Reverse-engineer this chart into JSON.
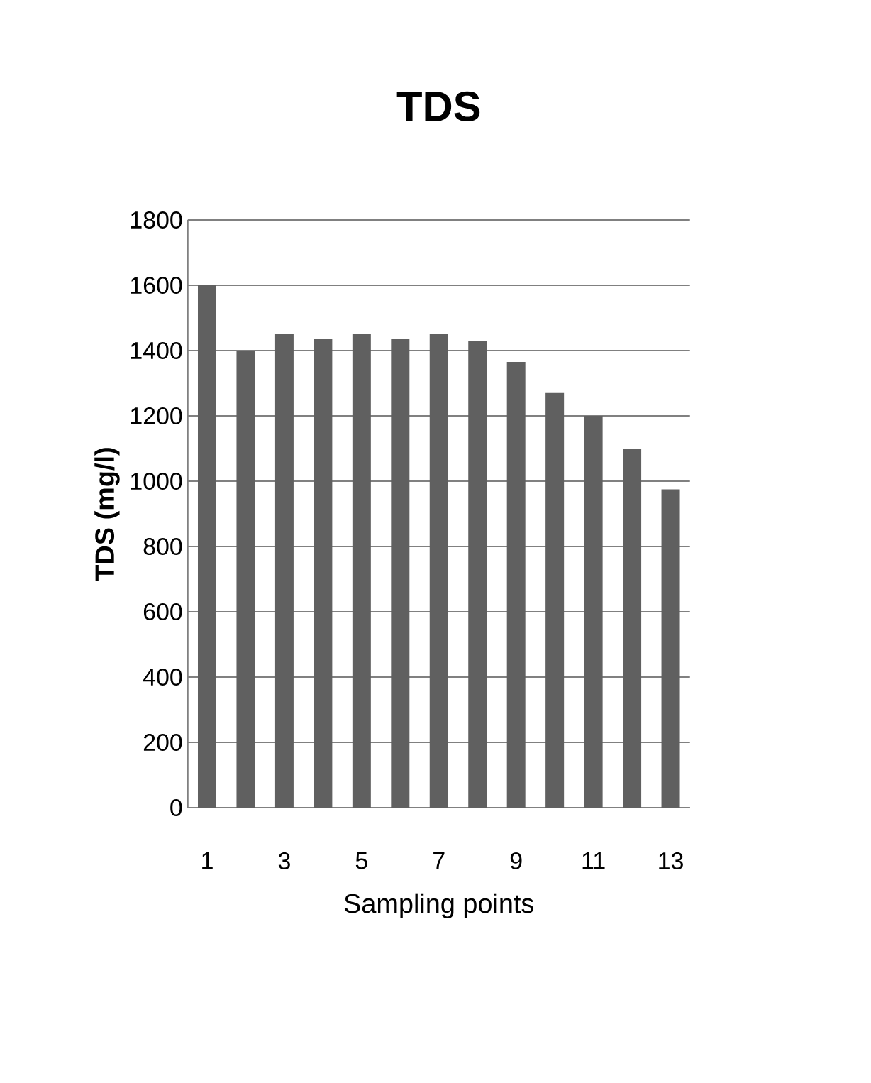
{
  "chart_data": {
    "type": "bar",
    "title": "TDS",
    "xlabel": "Sampling points",
    "ylabel": "TDS (mg/l)",
    "categories": [
      "1",
      null,
      "3",
      null,
      "5",
      null,
      "7",
      null,
      "9",
      null,
      "11",
      null,
      "13"
    ],
    "values": [
      1600,
      1400,
      1450,
      1435,
      1450,
      1435,
      1450,
      1430,
      1365,
      1270,
      1200,
      1100,
      975
    ],
    "color": "#606060",
    "ylim": [
      0,
      1800
    ],
    "yticks": [
      0,
      200,
      400,
      600,
      800,
      1000,
      1200,
      1400,
      1600,
      1800
    ],
    "grid": "y"
  }
}
